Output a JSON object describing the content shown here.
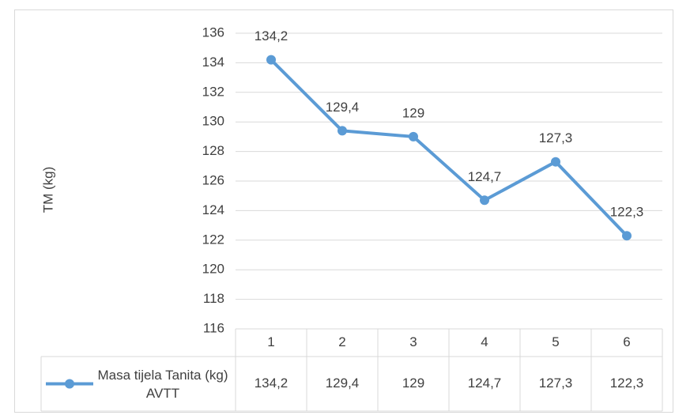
{
  "chart_data": {
    "type": "line",
    "y_label": "TM (kg)",
    "categories": [
      "1",
      "2",
      "3",
      "4",
      "5",
      "6"
    ],
    "series": [
      {
        "name": "Masa tijela Tanita (kg) AVTT",
        "color": "#5b9bd5",
        "values": [
          134.2,
          129.4,
          129,
          124.7,
          127.3,
          122.3
        ],
        "value_labels": [
          "134,2",
          "129,4",
          "129",
          "124,7",
          "127,3",
          "122,3"
        ]
      }
    ],
    "ylim": [
      116,
      136
    ],
    "yticks": [
      116,
      118,
      120,
      122,
      124,
      126,
      128,
      130,
      132,
      134,
      136
    ],
    "grid": true,
    "data_table": true
  }
}
